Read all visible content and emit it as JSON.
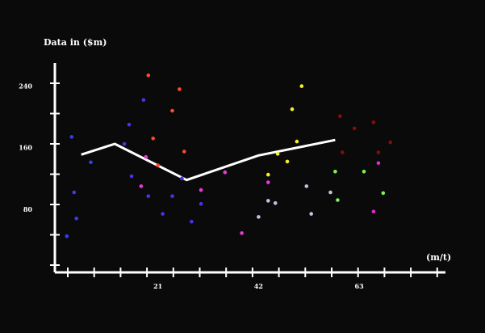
{
  "chart_data": {
    "type": "scatter",
    "ylabel": "Data in ($m)",
    "xlabel": "(m/t)",
    "xlim": [
      -0.5,
      81
    ],
    "ylim": [
      -2,
      270
    ],
    "x_ticks": [
      21,
      42,
      63
    ],
    "y_ticks": [
      80,
      160,
      240
    ],
    "grid": false,
    "background": "#0a0a0a",
    "axis_color": "#ffffff",
    "trend_line": {
      "color": "#ffffff",
      "points": [
        [
          5,
          151
        ],
        [
          12,
          165
        ],
        [
          27,
          118
        ],
        [
          42,
          150
        ],
        [
          58,
          170
        ]
      ]
    },
    "series": [
      {
        "color": "#3b3bf0",
        "points": [
          [
            2,
            45
          ],
          [
            3,
            174
          ],
          [
            3.5,
            102
          ],
          [
            4,
            68
          ],
          [
            7,
            141
          ]
        ]
      },
      {
        "color": "#4a32e8",
        "points": [
          [
            14,
            165
          ],
          [
            15,
            190
          ],
          [
            15.5,
            123
          ],
          [
            18,
            222
          ],
          [
            19,
            97
          ],
          [
            22,
            74
          ],
          [
            24,
            97
          ],
          [
            26,
            120
          ],
          [
            28,
            64
          ],
          [
            30,
            87
          ]
        ]
      },
      {
        "color": "#ff4a2a",
        "points": [
          [
            19,
            254
          ],
          [
            20,
            172
          ],
          [
            21,
            137
          ],
          [
            24,
            208
          ],
          [
            25.5,
            236
          ],
          [
            26.5,
            155
          ]
        ]
      },
      {
        "color": "#e83ad9",
        "points": [
          [
            17.5,
            110
          ],
          [
            18.5,
            148
          ],
          [
            30,
            105
          ],
          [
            35,
            128
          ],
          [
            38.5,
            49
          ],
          [
            44,
            115
          ]
        ]
      },
      {
        "color": "#c9c0e0",
        "points": [
          [
            42,
            70
          ],
          [
            44,
            91
          ],
          [
            45.5,
            88
          ],
          [
            52,
            110
          ],
          [
            53,
            74
          ],
          [
            57,
            102
          ]
        ]
      },
      {
        "color": "#f2f22a",
        "points": [
          [
            44,
            125
          ],
          [
            46,
            152
          ],
          [
            48,
            142
          ],
          [
            49,
            210
          ],
          [
            50,
            168
          ],
          [
            51,
            240
          ]
        ]
      },
      {
        "color": "#7df25a",
        "points": [
          [
            58,
            129
          ],
          [
            58.5,
            92
          ],
          [
            64,
            129
          ],
          [
            68,
            101
          ]
        ]
      },
      {
        "color": "#8b0a0a",
        "points": [
          [
            59,
            201
          ],
          [
            59.5,
            154
          ],
          [
            62,
            185
          ],
          [
            66,
            193
          ],
          [
            67,
            154
          ],
          [
            69.5,
            167
          ]
        ]
      },
      {
        "color": "#e02ad0",
        "points": [
          [
            66,
            77
          ],
          [
            67,
            140
          ]
        ]
      }
    ]
  }
}
